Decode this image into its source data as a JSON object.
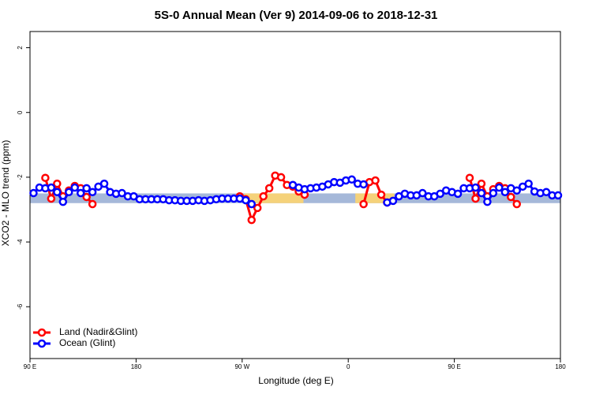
{
  "chart_data": {
    "type": "line",
    "title": "5S-0 Annual Mean (Ver 9)   2014-09-06 to 2018-12-31",
    "xlabel": "Longitude (deg E)",
    "ylabel": "XCO2 - MLO trend (ppm)",
    "x": [
      93,
      98,
      103,
      108,
      113,
      118,
      123,
      128,
      133,
      138,
      143,
      148,
      153,
      158,
      163,
      168,
      173,
      178,
      183,
      188,
      193,
      198,
      203,
      208,
      213,
      218,
      223,
      228,
      233,
      238,
      243,
      248,
      253,
      258,
      263,
      268,
      273,
      278,
      283,
      288,
      293,
      298,
      303,
      308,
      313,
      318,
      323,
      328,
      333,
      338,
      343,
      348,
      353,
      358,
      363,
      368,
      373,
      378,
      383,
      388,
      393,
      398,
      403,
      408,
      413,
      418,
      423,
      428,
      433,
      438,
      443,
      448,
      453,
      458,
      463,
      468,
      473,
      478,
      483,
      488,
      493,
      498,
      503,
      508,
      513,
      518,
      523,
      528,
      533,
      538
    ],
    "series": [
      {
        "name": "Land (Nadir&Glint)",
        "color": "#ff0000",
        "values": [
          null,
          null,
          -2.02,
          -2.66,
          -2.2,
          -2.59,
          -2.41,
          -2.27,
          -2.34,
          -2.61,
          -2.83,
          null,
          null,
          null,
          null,
          null,
          null,
          null,
          null,
          null,
          null,
          null,
          null,
          null,
          null,
          null,
          null,
          null,
          null,
          null,
          null,
          null,
          null,
          null,
          null,
          -2.59,
          -2.68,
          -3.32,
          -2.95,
          -2.59,
          -2.34,
          -1.95,
          -2.0,
          -2.24,
          -2.29,
          -2.44,
          -2.54,
          null,
          null,
          null,
          null,
          null,
          null,
          null,
          null,
          null,
          -2.83,
          -2.15,
          -2.1,
          -2.54,
          -2.78,
          null,
          null,
          null,
          null,
          null,
          null,
          null,
          null,
          null,
          null,
          null,
          null,
          null,
          -2.02,
          -2.66,
          -2.2,
          -2.59,
          -2.37,
          -2.27,
          -2.34,
          -2.61,
          -2.83,
          null,
          null,
          null,
          null,
          null,
          null,
          null
        ]
      },
      {
        "name": "Ocean (Glint)",
        "color": "#0000ff",
        "values": [
          -2.49,
          -2.32,
          -2.34,
          -2.32,
          -2.46,
          -2.76,
          -2.46,
          -2.32,
          -2.49,
          -2.34,
          -2.46,
          -2.29,
          -2.2,
          -2.46,
          -2.51,
          -2.49,
          -2.59,
          -2.59,
          -2.68,
          -2.68,
          -2.68,
          -2.68,
          -2.68,
          -2.71,
          -2.71,
          -2.73,
          -2.73,
          -2.73,
          -2.71,
          -2.73,
          -2.71,
          -2.68,
          -2.66,
          -2.66,
          -2.66,
          -2.66,
          -2.71,
          -2.83,
          null,
          null,
          null,
          null,
          null,
          null,
          -2.24,
          -2.32,
          -2.37,
          -2.34,
          -2.32,
          -2.29,
          -2.22,
          -2.15,
          -2.17,
          -2.1,
          -2.07,
          -2.2,
          -2.22,
          null,
          null,
          null,
          -2.78,
          -2.73,
          -2.59,
          -2.51,
          -2.56,
          -2.56,
          -2.49,
          -2.59,
          -2.59,
          -2.51,
          -2.41,
          -2.46,
          -2.51,
          -2.34,
          -2.34,
          -2.32,
          -2.49,
          -2.76,
          -2.49,
          -2.32,
          -2.46,
          -2.34,
          -2.41,
          -2.29,
          -2.2,
          -2.44,
          -2.49,
          -2.46,
          -2.56,
          -2.56
        ]
      }
    ],
    "band": {
      "ylim": [
        -2.8,
        -2.5
      ],
      "color": "#a5b8d9",
      "land_color": "#f5d27a",
      "land_spans": [
        [
          272,
          322
        ],
        [
          366,
          399
        ]
      ]
    },
    "xlim": [
      90,
      540
    ],
    "xticks": [
      {
        "value": 90,
        "label": "90 E"
      },
      {
        "value": 180,
        "label": "180"
      },
      {
        "value": 270,
        "label": "90 W"
      },
      {
        "value": 360,
        "label": "0"
      },
      {
        "value": 450,
        "label": "90 E"
      },
      {
        "value": 540,
        "label": "180"
      }
    ],
    "ylim": [
      -7.6,
      2.5
    ],
    "yticks": [
      -6,
      -4,
      -2,
      0,
      2
    ],
    "legend": "bottom-left"
  }
}
